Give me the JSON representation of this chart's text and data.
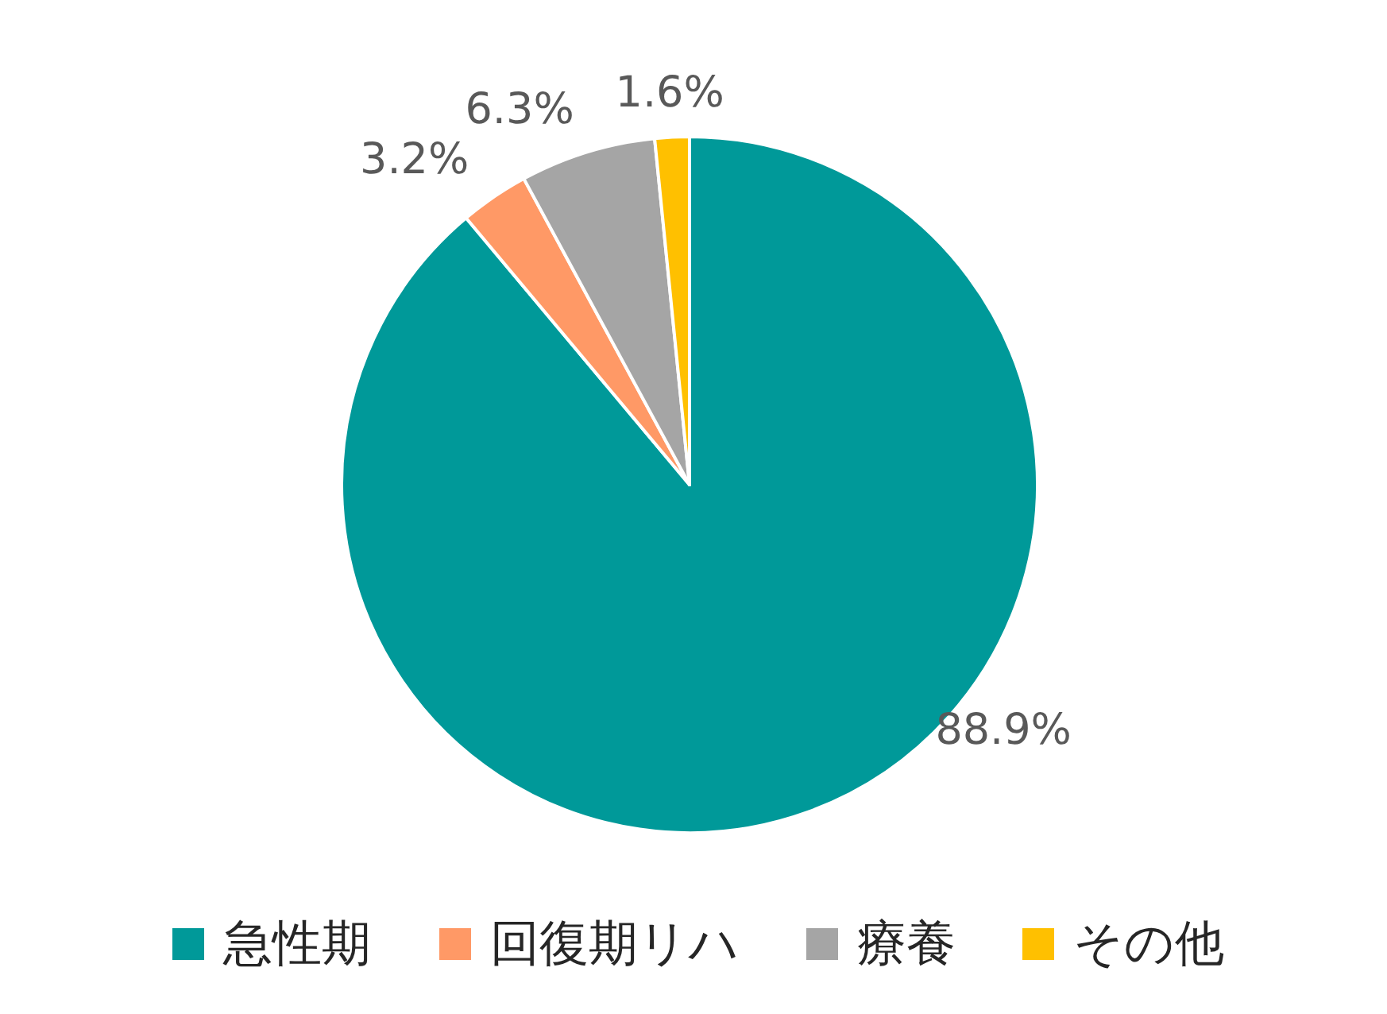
{
  "chart_data": {
    "type": "pie",
    "categories": [
      "急性期",
      "回復期リハ",
      "療養",
      "その他"
    ],
    "values": [
      88.9,
      3.2,
      6.3,
      1.6
    ],
    "colors": [
      "#009999",
      "#ff9966",
      "#a5a5a5",
      "#ffc000"
    ],
    "value_labels": [
      "88.9%",
      "3.2%",
      "6.3%",
      "1.6%"
    ],
    "legend": "bottom"
  }
}
